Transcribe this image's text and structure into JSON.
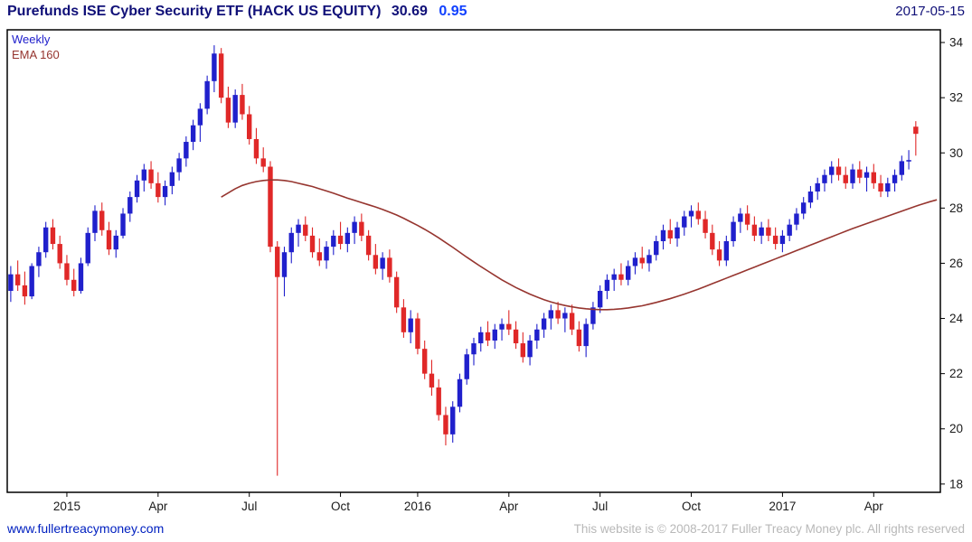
{
  "header": {
    "title": "Purefunds ISE Cyber Security ETF (HACK US EQUITY)",
    "price": "30.69",
    "change": "0.95",
    "date": "2017-05-15"
  },
  "chart": {
    "timeframe_label": "Weekly",
    "ema_label": "EMA 160",
    "colors": {
      "up": "#2020cc",
      "down": "#e02828",
      "ema": "#96352f",
      "axis_text": "#1a1a1a",
      "border": "#000000"
    }
  },
  "footer": {
    "site_link": "www.fullertreacymoney.com",
    "copyright": "This website is © 2008-2017 Fuller Treacy Money plc. All rights reserved"
  },
  "chart_data": {
    "type": "candlestick",
    "title": "Purefunds ISE Cyber Security ETF (HACK US EQUITY)",
    "symbol": "HACK US EQUITY",
    "interval": "weekly",
    "last_price": 30.69,
    "change": 0.95,
    "date": "2017-05-15",
    "ylim": [
      18,
      34
    ],
    "y_ticks": [
      18,
      20,
      22,
      24,
      26,
      28,
      30,
      32,
      34
    ],
    "x_ticks": [
      {
        "index": 8,
        "label": "2015"
      },
      {
        "index": 21,
        "label": "Apr"
      },
      {
        "index": 34,
        "label": "Jul"
      },
      {
        "index": 47,
        "label": "Oct"
      },
      {
        "index": 58,
        "label": "2016"
      },
      {
        "index": 71,
        "label": "Apr"
      },
      {
        "index": 84,
        "label": "Jul"
      },
      {
        "index": 97,
        "label": "Oct"
      },
      {
        "index": 110,
        "label": "2017"
      },
      {
        "index": 123,
        "label": "Apr"
      }
    ],
    "candles": [
      [
        25.0,
        25.9,
        24.6,
        25.6
      ],
      [
        25.6,
        26.1,
        25.0,
        25.2
      ],
      [
        25.2,
        25.7,
        24.5,
        24.8
      ],
      [
        24.8,
        26.0,
        24.7,
        25.9
      ],
      [
        25.9,
        26.6,
        25.5,
        26.4
      ],
      [
        26.4,
        27.5,
        26.2,
        27.3
      ],
      [
        27.3,
        27.6,
        26.5,
        26.7
      ],
      [
        26.7,
        27.0,
        25.8,
        26.0
      ],
      [
        26.0,
        26.3,
        25.2,
        25.4
      ],
      [
        25.4,
        25.8,
        24.8,
        25.0
      ],
      [
        25.0,
        26.2,
        24.9,
        26.0
      ],
      [
        26.0,
        27.3,
        25.9,
        27.1
      ],
      [
        27.1,
        28.1,
        26.8,
        27.9
      ],
      [
        27.9,
        28.2,
        27.0,
        27.2
      ],
      [
        27.2,
        27.5,
        26.3,
        26.5
      ],
      [
        26.5,
        27.2,
        26.2,
        27.0
      ],
      [
        27.0,
        28.0,
        26.9,
        27.8
      ],
      [
        27.8,
        28.6,
        27.5,
        28.4
      ],
      [
        28.4,
        29.2,
        28.2,
        29.0
      ],
      [
        29.0,
        29.6,
        28.6,
        29.4
      ],
      [
        29.4,
        29.7,
        28.7,
        28.9
      ],
      [
        28.9,
        29.3,
        28.2,
        28.4
      ],
      [
        28.4,
        29.0,
        28.1,
        28.8
      ],
      [
        28.8,
        29.5,
        28.5,
        29.3
      ],
      [
        29.3,
        30.0,
        29.0,
        29.8
      ],
      [
        29.8,
        30.6,
        29.5,
        30.4
      ],
      [
        30.4,
        31.2,
        30.1,
        31.0
      ],
      [
        31.0,
        31.8,
        30.4,
        31.6
      ],
      [
        31.6,
        32.8,
        31.4,
        32.6
      ],
      [
        32.6,
        33.9,
        32.2,
        33.6
      ],
      [
        33.6,
        33.8,
        31.8,
        32.0
      ],
      [
        32.0,
        32.4,
        30.9,
        31.1
      ],
      [
        31.1,
        32.3,
        30.9,
        32.1
      ],
      [
        32.1,
        32.5,
        31.2,
        31.4
      ],
      [
        31.4,
        31.7,
        30.3,
        30.5
      ],
      [
        30.5,
        30.9,
        29.6,
        29.8
      ],
      [
        29.8,
        30.2,
        29.3,
        29.5
      ],
      [
        29.5,
        29.7,
        26.4,
        26.6
      ],
      [
        26.6,
        26.8,
        18.3,
        25.5
      ],
      [
        25.5,
        26.6,
        24.8,
        26.4
      ],
      [
        26.4,
        27.3,
        26.0,
        27.1
      ],
      [
        27.1,
        27.6,
        26.6,
        27.4
      ],
      [
        27.4,
        27.7,
        26.8,
        27.0
      ],
      [
        27.0,
        27.3,
        26.2,
        26.4
      ],
      [
        26.4,
        26.9,
        25.9,
        26.1
      ],
      [
        26.1,
        26.8,
        25.8,
        26.6
      ],
      [
        26.6,
        27.2,
        26.3,
        27.0
      ],
      [
        27.0,
        27.5,
        26.5,
        26.7
      ],
      [
        26.7,
        27.3,
        26.4,
        27.1
      ],
      [
        27.1,
        27.7,
        26.7,
        27.5
      ],
      [
        27.5,
        27.8,
        26.8,
        27.0
      ],
      [
        27.0,
        27.2,
        26.1,
        26.3
      ],
      [
        26.3,
        26.7,
        25.6,
        25.8
      ],
      [
        25.8,
        26.4,
        25.4,
        26.2
      ],
      [
        26.2,
        26.5,
        25.3,
        25.5
      ],
      [
        25.5,
        25.7,
        24.2,
        24.4
      ],
      [
        24.4,
        24.7,
        23.3,
        23.5
      ],
      [
        23.5,
        24.3,
        23.1,
        24.0
      ],
      [
        24.0,
        24.2,
        22.7,
        22.9
      ],
      [
        22.9,
        23.2,
        21.8,
        22.0
      ],
      [
        22.0,
        22.5,
        21.2,
        21.5
      ],
      [
        21.5,
        21.8,
        20.3,
        20.5
      ],
      [
        20.5,
        20.8,
        19.4,
        19.8
      ],
      [
        19.8,
        21.0,
        19.5,
        20.8
      ],
      [
        20.8,
        22.0,
        20.6,
        21.8
      ],
      [
        21.8,
        22.9,
        21.6,
        22.7
      ],
      [
        22.7,
        23.3,
        22.3,
        23.1
      ],
      [
        23.1,
        23.7,
        22.8,
        23.5
      ],
      [
        23.5,
        23.9,
        23.0,
        23.2
      ],
      [
        23.2,
        23.8,
        22.9,
        23.6
      ],
      [
        23.6,
        24.0,
        23.2,
        23.8
      ],
      [
        23.8,
        24.3,
        23.4,
        23.6
      ],
      [
        23.6,
        23.9,
        22.9,
        23.1
      ],
      [
        23.1,
        23.5,
        22.4,
        22.6
      ],
      [
        22.6,
        23.4,
        22.3,
        23.2
      ],
      [
        23.2,
        23.8,
        22.9,
        23.6
      ],
      [
        23.6,
        24.2,
        23.3,
        24.0
      ],
      [
        24.0,
        24.5,
        23.6,
        24.3
      ],
      [
        24.3,
        24.6,
        23.8,
        24.0
      ],
      [
        24.0,
        24.4,
        23.5,
        24.2
      ],
      [
        24.2,
        24.5,
        23.4,
        23.6
      ],
      [
        23.6,
        23.9,
        22.8,
        23.0
      ],
      [
        23.0,
        24.0,
        22.6,
        23.8
      ],
      [
        23.8,
        24.6,
        23.6,
        24.4
      ],
      [
        24.4,
        25.2,
        24.2,
        25.0
      ],
      [
        25.0,
        25.6,
        24.7,
        25.4
      ],
      [
        25.4,
        25.8,
        25.0,
        25.6
      ],
      [
        25.6,
        26.0,
        25.2,
        25.4
      ],
      [
        25.4,
        26.1,
        25.2,
        25.9
      ],
      [
        25.9,
        26.4,
        25.6,
        26.2
      ],
      [
        26.2,
        26.6,
        25.8,
        26.0
      ],
      [
        26.0,
        26.5,
        25.7,
        26.3
      ],
      [
        26.3,
        27.0,
        26.1,
        26.8
      ],
      [
        26.8,
        27.4,
        26.5,
        27.2
      ],
      [
        27.2,
        27.6,
        26.7,
        26.9
      ],
      [
        26.9,
        27.5,
        26.6,
        27.3
      ],
      [
        27.3,
        27.9,
        27.0,
        27.7
      ],
      [
        27.7,
        28.1,
        27.3,
        27.9
      ],
      [
        27.9,
        28.2,
        27.4,
        27.6
      ],
      [
        27.6,
        27.9,
        26.9,
        27.1
      ],
      [
        27.1,
        27.4,
        26.3,
        26.5
      ],
      [
        26.5,
        26.8,
        25.9,
        26.1
      ],
      [
        26.1,
        27.0,
        25.9,
        26.8
      ],
      [
        26.8,
        27.7,
        26.6,
        27.5
      ],
      [
        27.5,
        28.0,
        27.1,
        27.8
      ],
      [
        27.8,
        28.1,
        27.2,
        27.4
      ],
      [
        27.4,
        27.7,
        26.8,
        27.0
      ],
      [
        27.0,
        27.5,
        26.7,
        27.3
      ],
      [
        27.3,
        27.6,
        26.8,
        27.0
      ],
      [
        27.0,
        27.3,
        26.5,
        26.7
      ],
      [
        26.7,
        27.2,
        26.4,
        27.0
      ],
      [
        27.0,
        27.6,
        26.8,
        27.4
      ],
      [
        27.4,
        28.0,
        27.2,
        27.8
      ],
      [
        27.8,
        28.4,
        27.6,
        28.2
      ],
      [
        28.2,
        28.8,
        28.0,
        28.6
      ],
      [
        28.6,
        29.1,
        28.3,
        28.9
      ],
      [
        28.9,
        29.4,
        28.6,
        29.2
      ],
      [
        29.2,
        29.7,
        28.9,
        29.5
      ],
      [
        29.5,
        29.8,
        29.0,
        29.2
      ],
      [
        29.2,
        29.5,
        28.7,
        28.9
      ],
      [
        28.9,
        29.6,
        28.7,
        29.4
      ],
      [
        29.4,
        29.7,
        28.9,
        29.1
      ],
      [
        29.1,
        29.5,
        28.6,
        29.3
      ],
      [
        29.3,
        29.6,
        28.7,
        28.9
      ],
      [
        28.9,
        29.2,
        28.4,
        28.6
      ],
      [
        28.6,
        29.1,
        28.4,
        28.9
      ],
      [
        28.9,
        29.4,
        28.6,
        29.2
      ],
      [
        29.2,
        29.9,
        29.0,
        29.7
      ],
      [
        29.7,
        30.1,
        29.4,
        29.74
      ],
      [
        30.95,
        31.15,
        29.9,
        30.69
      ]
    ],
    "overlay": {
      "name": "EMA 160",
      "start_index": 30,
      "values": [
        28.4,
        28.55,
        28.7,
        28.82,
        28.9,
        28.96,
        29.0,
        29.02,
        29.02,
        29.0,
        28.96,
        28.9,
        28.84,
        28.78,
        28.7,
        28.62,
        28.54,
        28.45,
        28.36,
        28.28,
        28.2,
        28.12,
        28.04,
        27.95,
        27.85,
        27.75,
        27.63,
        27.5,
        27.37,
        27.23,
        27.08,
        26.92,
        26.75,
        26.58,
        26.4,
        26.22,
        26.05,
        25.88,
        25.72,
        25.56,
        25.4,
        25.26,
        25.12,
        25.0,
        24.88,
        24.78,
        24.68,
        24.6,
        24.53,
        24.47,
        24.42,
        24.38,
        24.35,
        24.33,
        24.32,
        24.32,
        24.33,
        24.35,
        24.38,
        24.42,
        24.46,
        24.52,
        24.58,
        24.65,
        24.72,
        24.8,
        24.88,
        24.97,
        25.06,
        25.16,
        25.26,
        25.36,
        25.46,
        25.56,
        25.66,
        25.76,
        25.86,
        25.96,
        26.06,
        26.16,
        26.26,
        26.36,
        26.46,
        26.56,
        26.66,
        26.76,
        26.86,
        26.96,
        27.06,
        27.16,
        27.26,
        27.35,
        27.44,
        27.53,
        27.62,
        27.71,
        27.8,
        27.89,
        27.98,
        28.07,
        28.15,
        28.23,
        28.3
      ]
    },
    "legend": [
      "Weekly",
      "EMA 160"
    ],
    "grid": false,
    "axis_position": {
      "y": "right",
      "x": "bottom"
    }
  }
}
